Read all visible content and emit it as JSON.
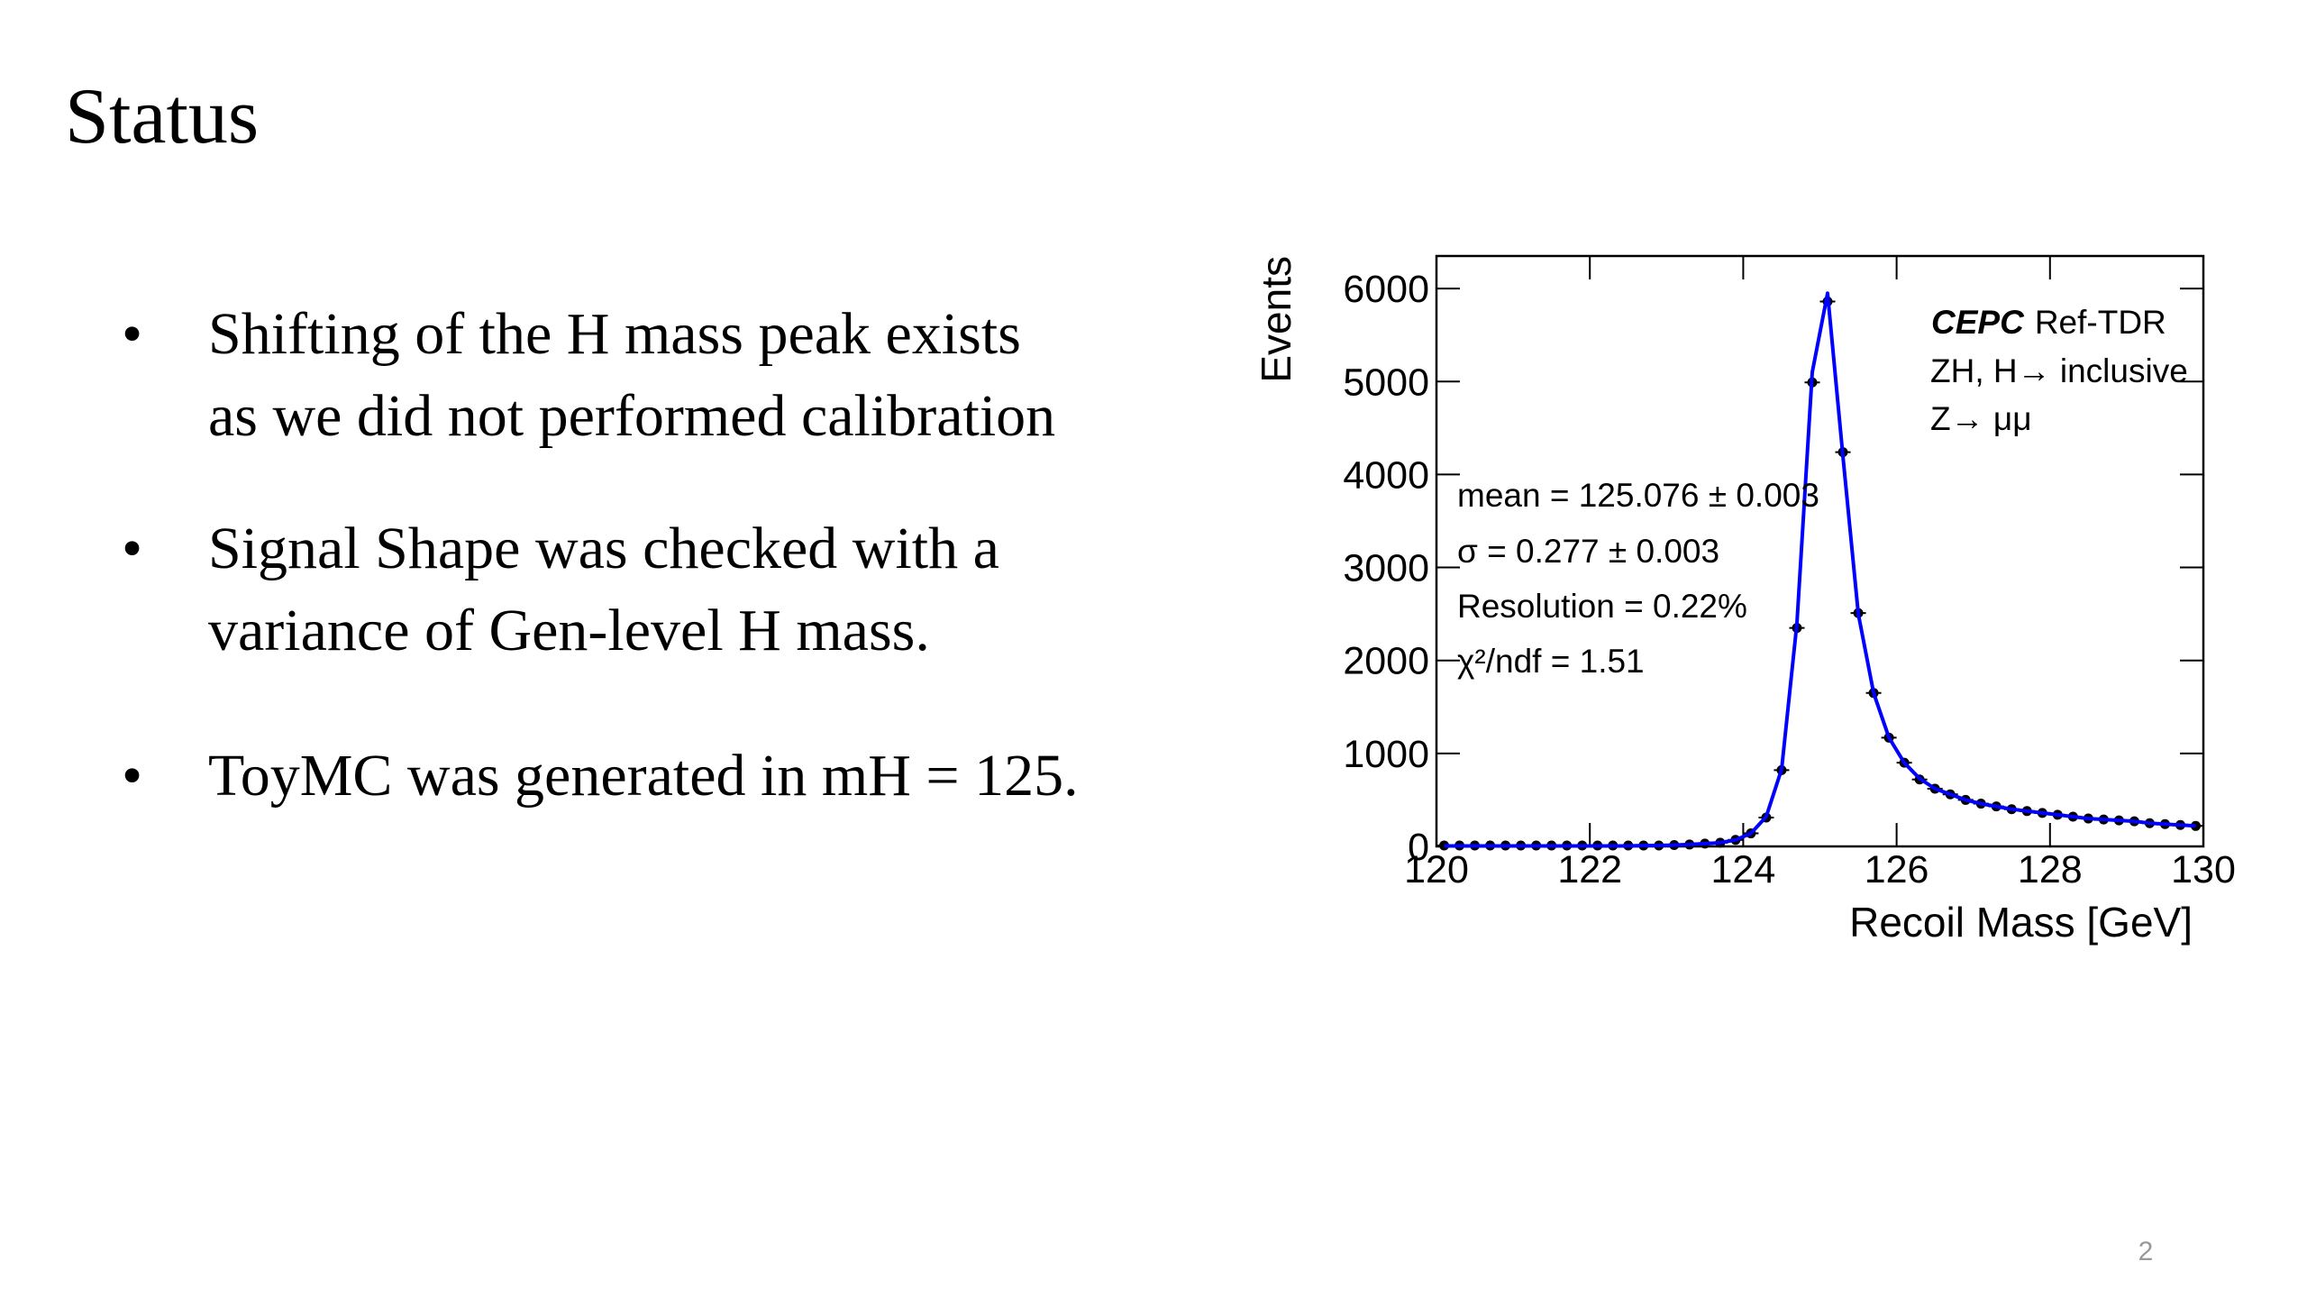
{
  "title": "Status",
  "bullets": [
    "Shifting of the H mass peak exists",
    "as we did not performed calibration",
    "Signal Shape was checked with a",
    "variance of Gen-level H mass.",
    "ToyMC was generated in mH = 125."
  ],
  "page_number": "2",
  "chart_data": {
    "type": "scatter",
    "xlabel": "Recoil Mass [GeV]",
    "ylabel": "Events",
    "annotations": [
      "CEPC",
      "Ref-TDR",
      "ZH, H→ inclusive",
      "Z→ μμ",
      "mean = 125.076 ± 0.003",
      "σ = 0.277 ± 0.003",
      "Resolution = 0.22%",
      "χ²/ndf = 1.51"
    ],
    "xlim": [
      120,
      130
    ],
    "ylim": [
      0,
      6350
    ],
    "xticks": [
      120,
      122,
      124,
      126,
      128,
      130
    ],
    "yticks": [
      0,
      1000,
      2000,
      3000,
      4000,
      5000,
      6000
    ],
    "x": [
      120.1,
      120.3,
      120.5,
      120.7,
      120.9,
      121.1,
      121.3,
      121.5,
      121.7,
      121.9,
      122.1,
      122.3,
      122.5,
      122.7,
      122.9,
      123.1,
      123.3,
      123.5,
      123.7,
      123.9,
      124.1,
      124.3,
      124.5,
      124.7,
      124.9,
      125.1,
      125.3,
      125.5,
      125.7,
      125.9,
      126.1,
      126.3,
      126.5,
      126.7,
      126.9,
      127.1,
      127.3,
      127.5,
      127.7,
      127.9,
      128.1,
      128.3,
      128.5,
      128.7,
      128.9,
      129.1,
      129.3,
      129.5,
      129.7,
      129.9
    ],
    "series": [
      {
        "name": "data",
        "color": "#000000",
        "values": [
          10,
          10,
          10,
          10,
          10,
          10,
          10,
          10,
          10,
          10,
          10,
          10,
          10,
          10,
          10,
          15,
          20,
          30,
          40,
          70,
          140,
          310,
          820,
          2350,
          4990,
          5860,
          4240,
          2510,
          1650,
          1170,
          900,
          720,
          620,
          560,
          500,
          460,
          430,
          400,
          380,
          360,
          340,
          320,
          300,
          290,
          280,
          270,
          250,
          240,
          230,
          220
        ]
      },
      {
        "name": "fit",
        "color": "#0000ff",
        "values": [
          5,
          5,
          5,
          5,
          5,
          5,
          5,
          5,
          5,
          5,
          5,
          5,
          5,
          10,
          10,
          15,
          20,
          30,
          40,
          70,
          140,
          320,
          830,
          2400,
          5100,
          5950,
          4200,
          2500,
          1650,
          1170,
          900,
          730,
          620,
          560,
          500,
          460,
          430,
          400,
          380,
          360,
          340,
          320,
          300,
          290,
          280,
          270,
          250,
          240,
          230,
          220
        ]
      }
    ]
  }
}
